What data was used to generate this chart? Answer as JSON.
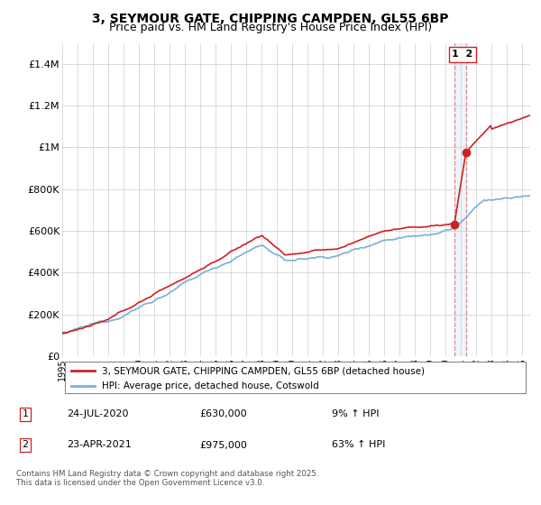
{
  "title": "3, SEYMOUR GATE, CHIPPING CAMPDEN, GL55 6BP",
  "subtitle": "Price paid vs. HM Land Registry's House Price Index (HPI)",
  "title_fontsize": 10,
  "subtitle_fontsize": 9,
  "background_color": "#ffffff",
  "plot_bg_color": "#ffffff",
  "grid_color": "#cccccc",
  "ylim": [
    0,
    1500000
  ],
  "yticks": [
    0,
    200000,
    400000,
    600000,
    800000,
    1000000,
    1200000,
    1400000
  ],
  "ytick_labels": [
    "£0",
    "£200K",
    "£400K",
    "£600K",
    "£800K",
    "£1M",
    "£1.2M",
    "£1.4M"
  ],
  "xlim_start": 1995.0,
  "xlim_end": 2025.5,
  "hpi_color": "#7ab0d4",
  "price_color": "#cc2222",
  "vline_color": "#e87070",
  "hpi_linewidth": 1.2,
  "price_linewidth": 1.2,
  "legend_label_price": "3, SEYMOUR GATE, CHIPPING CAMPDEN, GL55 6BP (detached house)",
  "legend_label_hpi": "HPI: Average price, detached house, Cotswold",
  "transaction1_date": 2020.56,
  "transaction1_price": 630000,
  "transaction1_label": "1",
  "transaction1_date_str": "24-JUL-2020",
  "transaction1_price_str": "£630,000",
  "transaction1_pct": "9% ↑ HPI",
  "transaction2_date": 2021.31,
  "transaction2_price": 975000,
  "transaction2_label": "2",
  "transaction2_date_str": "23-APR-2021",
  "transaction2_price_str": "£975,000",
  "transaction2_pct": "63% ↑ HPI",
  "footnote": "Contains HM Land Registry data © Crown copyright and database right 2025.\nThis data is licensed under the Open Government Licence v3.0."
}
